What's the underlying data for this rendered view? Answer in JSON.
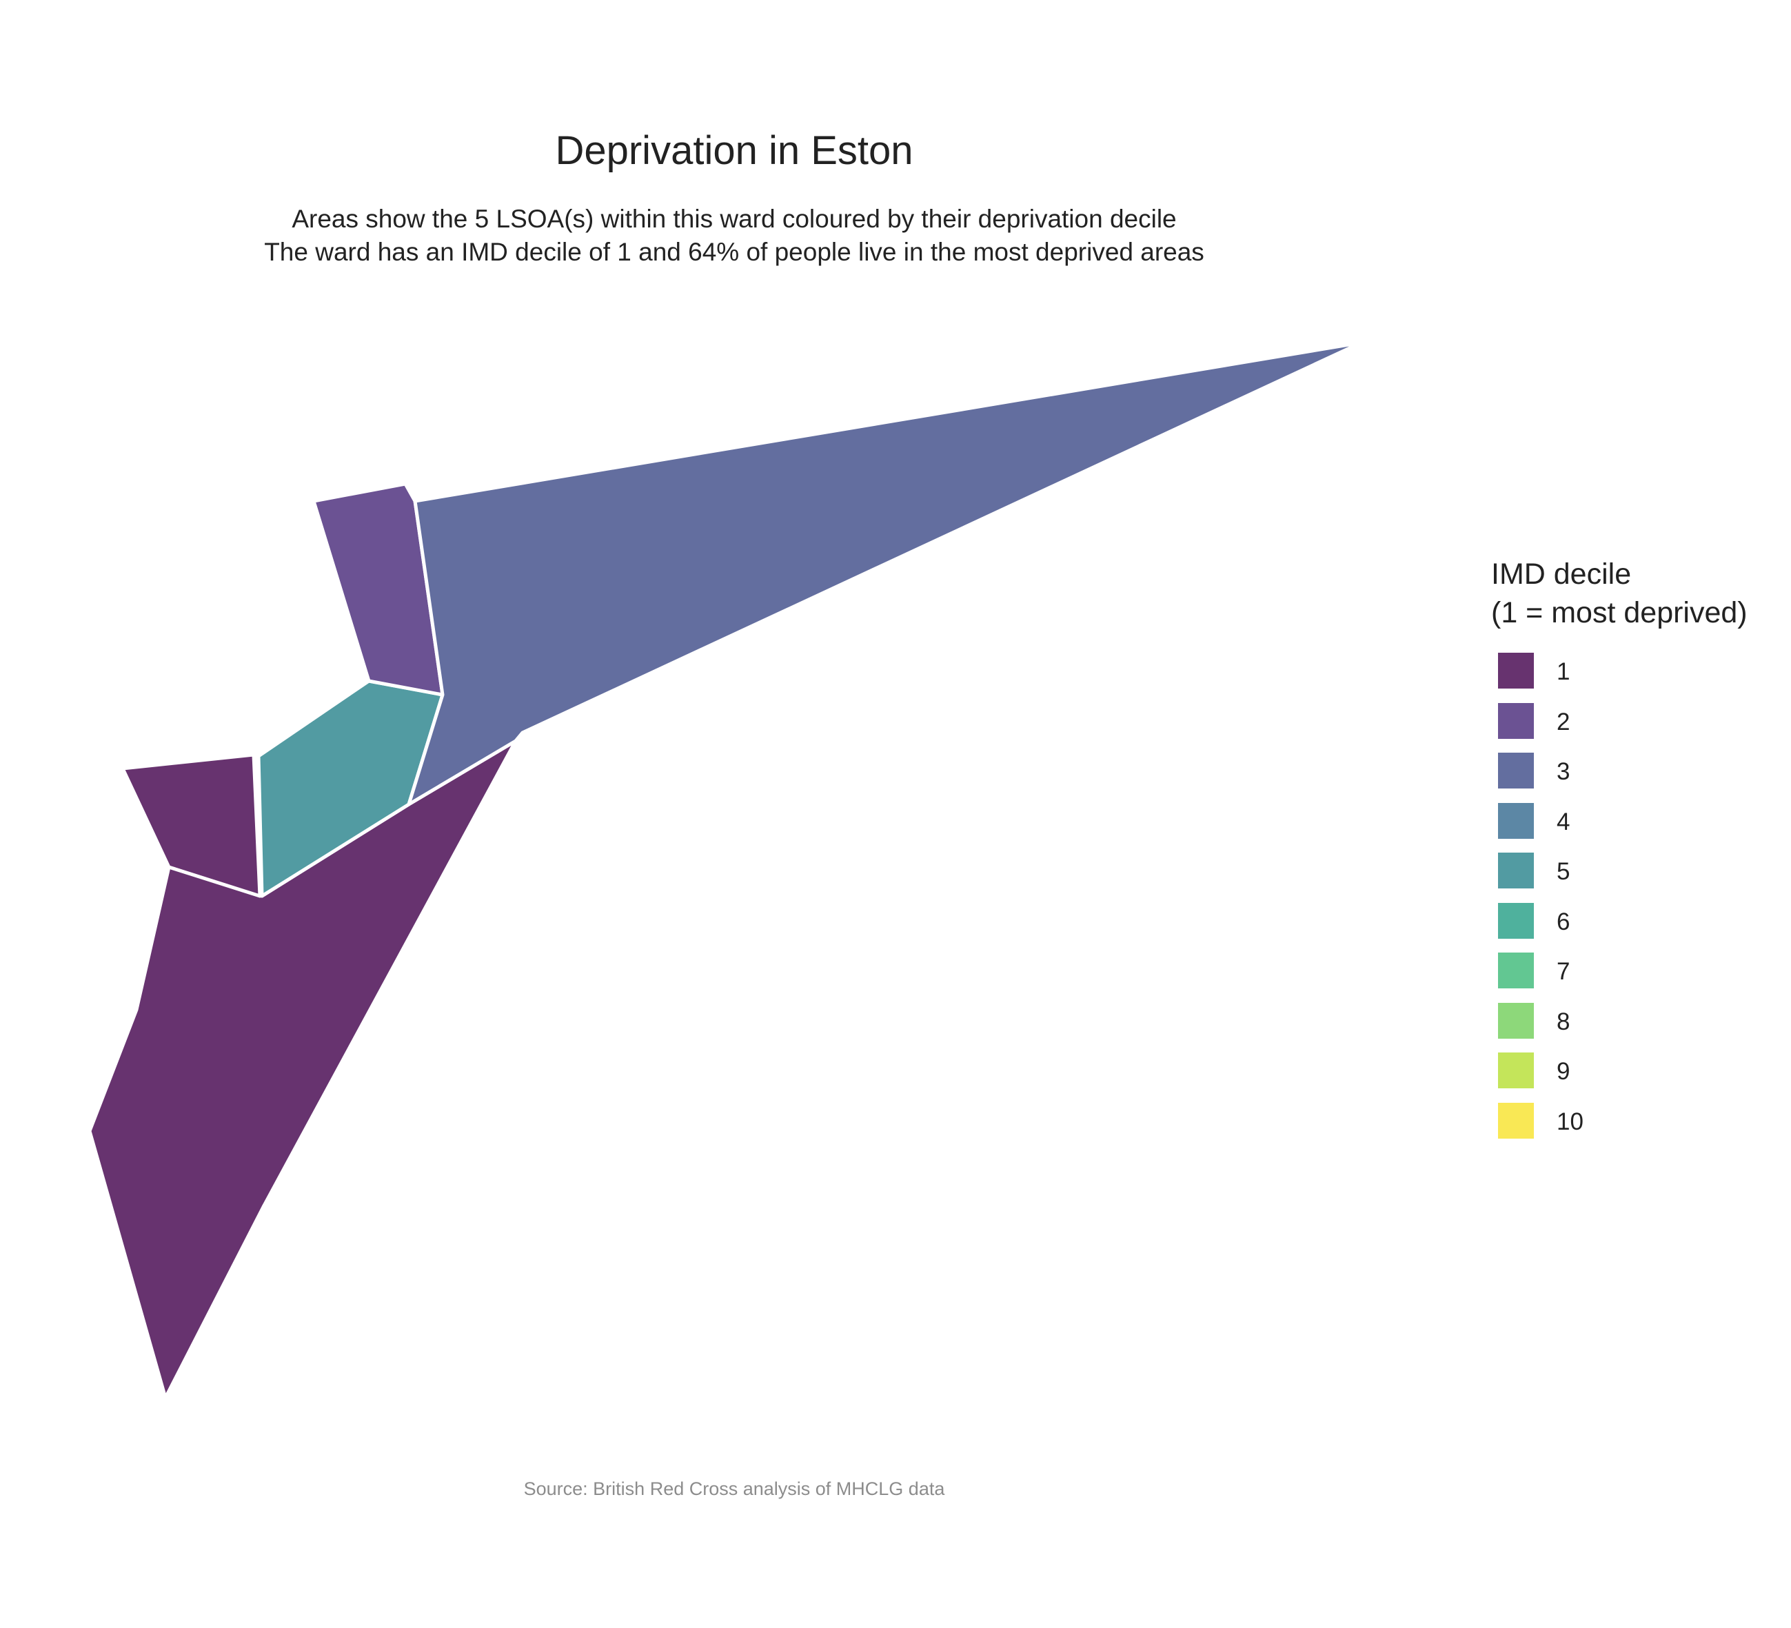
{
  "title": "Deprivation in Eston",
  "subtitle": [
    "Areas show the 5 LSOA(s) within this ward coloured by their deprivation decile",
    "The ward has an IMD decile of 1 and 64% of people live in the most deprived areas"
  ],
  "caption": "Source: British Red Cross analysis of MHCLG data",
  "chart_data": {
    "type": "choropleth-map",
    "ward": "Eston",
    "lsoa_count": 5,
    "ward_imd_decile": 1,
    "pct_people_most_deprived": 64,
    "areas": [
      {
        "decile": 1
      },
      {
        "decile": 1
      },
      {
        "decile": 2
      },
      {
        "decile": 3
      },
      {
        "decile": 5
      }
    ],
    "legend": {
      "title": [
        "IMD decile",
        "(1 = most deprived)"
      ],
      "placement": "right",
      "entries": [
        {
          "label": "1",
          "color": "#67336f"
        },
        {
          "label": "2",
          "color": "#6b5293"
        },
        {
          "label": "3",
          "color": "#636e9f"
        },
        {
          "label": "4",
          "color": "#5c87a5"
        },
        {
          "label": "5",
          "color": "#529ba2"
        },
        {
          "label": "6",
          "color": "#4fb19d"
        },
        {
          "label": "7",
          "color": "#62c792"
        },
        {
          "label": "8",
          "color": "#8dd87a"
        },
        {
          "label": "9",
          "color": "#c4e55a"
        },
        {
          "label": "10",
          "color": "#f9e855"
        }
      ]
    }
  },
  "colors": {
    "border": "#ffffff",
    "caption": "#8c8c8c",
    "text": "#222222"
  }
}
